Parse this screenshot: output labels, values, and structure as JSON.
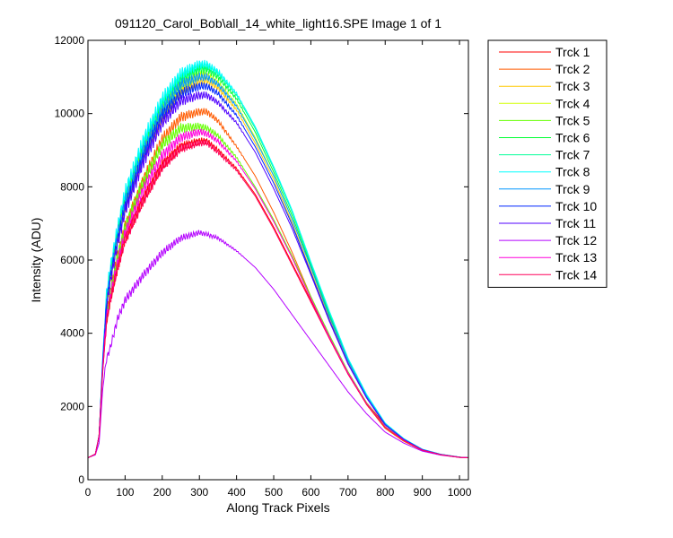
{
  "chart_data": {
    "type": "line",
    "title": "091120_Carol_Bob\\all_14_white_light16.SPE  Image 1 of 1",
    "xlabel": "Along Track Pixels",
    "ylabel": "Intensity (ADU)",
    "xlim": [
      0,
      1024
    ],
    "ylim": [
      0,
      12000
    ],
    "xticks": [
      0,
      100,
      200,
      300,
      400,
      500,
      600,
      700,
      800,
      900,
      1000
    ],
    "yticks": [
      0,
      2000,
      4000,
      6000,
      8000,
      10000,
      12000
    ],
    "grid": false,
    "legend_position": "outside-right",
    "x": [
      0,
      20,
      30,
      40,
      50,
      60,
      80,
      100,
      150,
      200,
      250,
      300,
      320,
      350,
      400,
      450,
      500,
      550,
      600,
      650,
      700,
      750,
      800,
      850,
      900,
      950,
      1000,
      1024
    ],
    "series": [
      {
        "name": "Trck 1",
        "color": "#ff0000",
        "values": [
          600,
          700,
          1200,
          3000,
          4300,
          4900,
          5800,
          6600,
          7700,
          8600,
          9100,
          9250,
          9250,
          9000,
          8500,
          7800,
          6900,
          5900,
          4900,
          3900,
          2900,
          2100,
          1500,
          1100,
          800,
          680,
          610,
          600
        ]
      },
      {
        "name": "Trck 2",
        "color": "#ff5a00",
        "values": [
          600,
          700,
          1200,
          3100,
          4500,
          5100,
          6100,
          6900,
          8200,
          9300,
          9900,
          10050,
          10050,
          9800,
          9100,
          8300,
          7300,
          6200,
          5000,
          3900,
          2900,
          2050,
          1400,
          1050,
          800,
          680,
          610,
          600
        ]
      },
      {
        "name": "Trck 3",
        "color": "#ffc800",
        "values": [
          600,
          700,
          1200,
          3200,
          4700,
          5400,
          6500,
          7400,
          8800,
          9900,
          10600,
          10900,
          10900,
          10700,
          10100,
          9200,
          8200,
          7000,
          5700,
          4400,
          3200,
          2250,
          1500,
          1100,
          820,
          690,
          615,
          600
        ]
      },
      {
        "name": "Trck 4",
        "color": "#d2ff00",
        "values": [
          600,
          700,
          1200,
          3250,
          4800,
          5500,
          6600,
          7500,
          8950,
          10050,
          10750,
          11050,
          11050,
          10850,
          10250,
          9350,
          8300,
          7100,
          5800,
          4450,
          3250,
          2280,
          1520,
          1110,
          825,
          690,
          615,
          600
        ]
      },
      {
        "name": "Trck 5",
        "color": "#64ff00",
        "values": [
          600,
          700,
          1200,
          3100,
          4500,
          5100,
          6100,
          6900,
          8150,
          9150,
          9600,
          9650,
          9600,
          9400,
          8800,
          8000,
          7100,
          6100,
          5000,
          3950,
          2950,
          2100,
          1450,
          1080,
          810,
          685,
          612,
          600
        ]
      },
      {
        "name": "Trck 6",
        "color": "#00ff32",
        "values": [
          600,
          700,
          1200,
          3300,
          4900,
          5600,
          6700,
          7650,
          9100,
          10200,
          10900,
          11200,
          11200,
          11000,
          10400,
          9500,
          8400,
          7200,
          5850,
          4500,
          3280,
          2300,
          1530,
          1115,
          828,
          692,
          616,
          600
        ]
      },
      {
        "name": "Trck 7",
        "color": "#00ff9a",
        "values": [
          600,
          700,
          1200,
          3350,
          5000,
          5700,
          6800,
          7750,
          9200,
          10300,
          11000,
          11300,
          11300,
          11100,
          10500,
          9600,
          8500,
          7300,
          5900,
          4550,
          3300,
          2320,
          1540,
          1120,
          830,
          693,
          617,
          600
        ]
      },
      {
        "name": "Trck 8",
        "color": "#00ffff",
        "values": [
          600,
          700,
          1200,
          3400,
          5100,
          5800,
          6900,
          7850,
          9300,
          10400,
          11100,
          11350,
          11350,
          11150,
          10550,
          9650,
          8550,
          7350,
          5950,
          4600,
          3320,
          2330,
          1545,
          1122,
          831,
          694,
          617,
          600
        ]
      },
      {
        "name": "Trck 9",
        "color": "#0096ff",
        "values": [
          600,
          700,
          1200,
          3300,
          4900,
          5600,
          6700,
          7600,
          9000,
          10100,
          10800,
          11000,
          11000,
          10800,
          10200,
          9300,
          8300,
          7100,
          5800,
          4450,
          3250,
          2280,
          1520,
          1110,
          825,
          690,
          615,
          600
        ]
      },
      {
        "name": "Trck 10",
        "color": "#0028ff",
        "values": [
          600,
          700,
          1200,
          3250,
          4800,
          5500,
          6550,
          7450,
          8850,
          9950,
          10550,
          10750,
          10750,
          10550,
          9950,
          9100,
          8100,
          6950,
          5650,
          4350,
          3180,
          2240,
          1500,
          1100,
          820,
          688,
          614,
          600
        ]
      },
      {
        "name": "Trck 11",
        "color": "#5000ff",
        "values": [
          600,
          700,
          1200,
          3200,
          4700,
          5400,
          6450,
          7350,
          8700,
          9750,
          10350,
          10500,
          10500,
          10300,
          9750,
          8950,
          7950,
          6850,
          5600,
          4320,
          3160,
          2230,
          1495,
          1098,
          818,
          687,
          614,
          600
        ]
      },
      {
        "name": "Trck 12",
        "color": "#b400ff",
        "values": [
          600,
          680,
          1000,
          2500,
          3300,
          3600,
          4400,
          4900,
          5600,
          6200,
          6600,
          6750,
          6700,
          6600,
          6250,
          5800,
          5200,
          4500,
          3800,
          3100,
          2400,
          1800,
          1300,
          1000,
          780,
          670,
          610,
          600
        ]
      },
      {
        "name": "Trck 13",
        "color": "#ff00dc",
        "values": [
          600,
          700,
          1200,
          3050,
          4400,
          5000,
          5950,
          6750,
          7950,
          8850,
          9350,
          9500,
          9450,
          9250,
          8700,
          7950,
          7050,
          6050,
          4950,
          3900,
          2920,
          2080,
          1440,
          1075,
          808,
          684,
          612,
          600
        ]
      },
      {
        "name": "Trck 14",
        "color": "#ff005a",
        "values": [
          600,
          700,
          1200,
          3000,
          4300,
          4900,
          5800,
          6550,
          7650,
          8550,
          9050,
          9200,
          9200,
          8950,
          8450,
          7750,
          6850,
          5850,
          4850,
          3850,
          2880,
          2060,
          1430,
          1070,
          805,
          682,
          611,
          600
        ]
      }
    ]
  }
}
